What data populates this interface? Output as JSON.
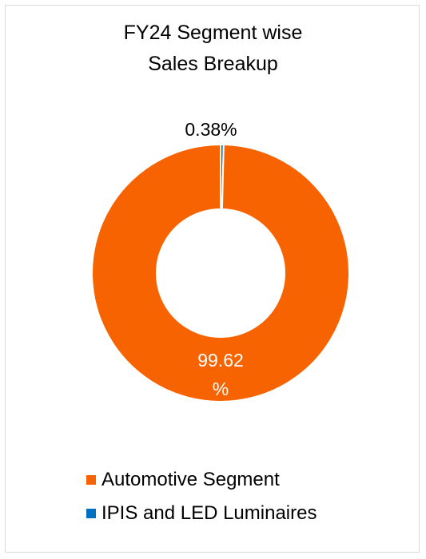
{
  "chart_data": {
    "type": "pie",
    "variant": "donut",
    "title_lines": [
      "FY24 Segment wise",
      "Sales Breakup"
    ],
    "categories": [
      "Automotive Segment",
      "IPIS and LED Luminaires"
    ],
    "values": [
      99.62,
      0.38
    ],
    "unit": "%",
    "data_labels": [
      {
        "text_lines": [
          "99.62",
          "%"
        ],
        "color": "#ffffff"
      },
      {
        "text_lines": [
          "0.38%"
        ],
        "color": "#000000"
      }
    ],
    "colors": [
      "#f76300",
      "#0070c0"
    ],
    "legend_position": "bottom"
  }
}
